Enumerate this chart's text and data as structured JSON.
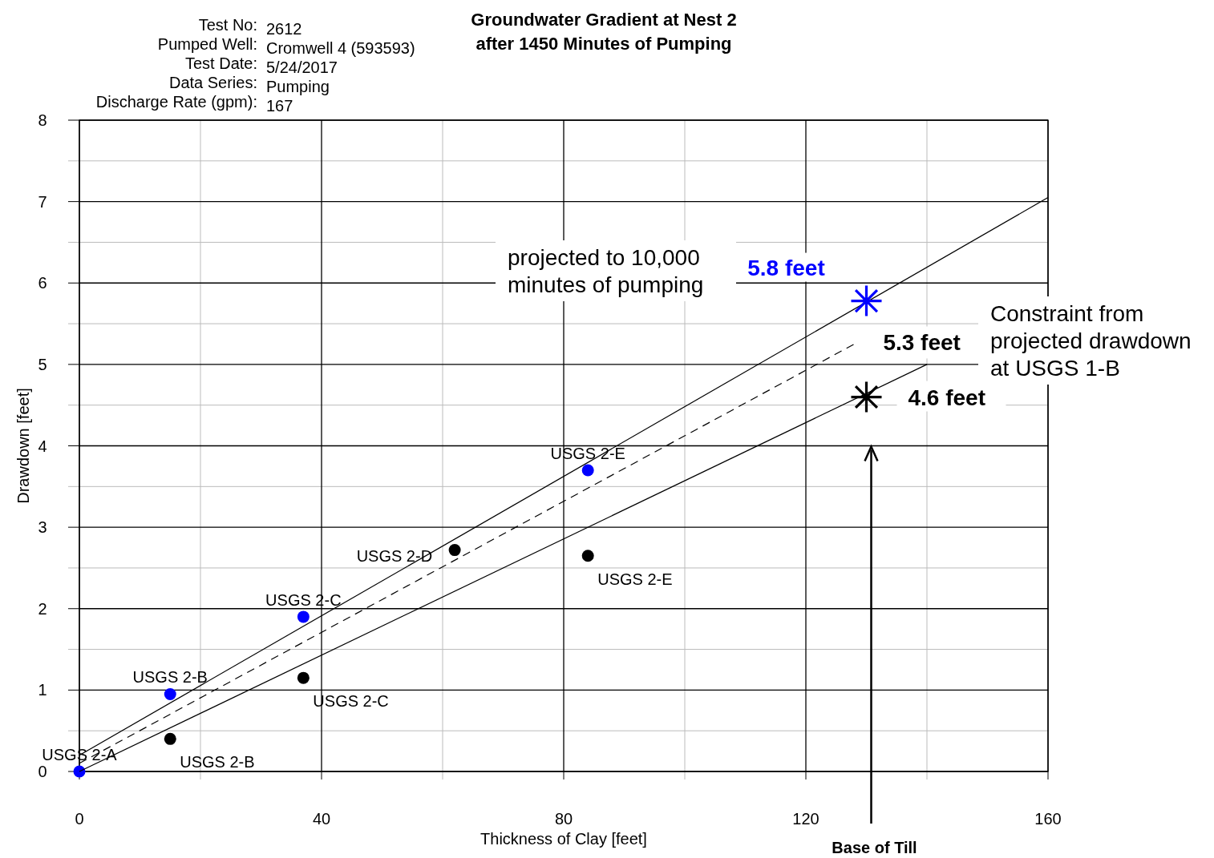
{
  "chart_data": {
    "type": "scatter",
    "title": "Groundwater Gradient at Nest 2\nafter 1450 Minutes of Pumping",
    "xlabel": "Thickness of Clay [feet]",
    "ylabel": "Drawdown [feet]",
    "xlim": [
      0,
      160
    ],
    "ylim": [
      0,
      8
    ],
    "xticks": [
      0,
      40,
      80,
      120,
      160
    ],
    "yticks": [
      0,
      1,
      2,
      3,
      4,
      5,
      6,
      7,
      8
    ],
    "grid": true,
    "marker": "circle",
    "series": [
      {
        "color": "#0000ff",
        "x": [
          0,
          15,
          37,
          84
        ],
        "values": [
          0,
          0.95,
          1.9,
          3.7
        ]
      },
      {
        "color": "#000000",
        "x": [
          15,
          37,
          62,
          84
        ],
        "values": [
          0.4,
          1.15,
          2.72,
          2.65
        ]
      },
      {
        "type": "line",
        "color": "#000000",
        "line_style": "solid",
        "marker": "none",
        "x": [
          0,
          160
        ],
        "values": [
          0.2,
          7.05
        ]
      },
      {
        "type": "line",
        "color": "#000000",
        "line_style": "dashed",
        "marker": "none",
        "x": [
          0,
          128
        ],
        "values": [
          0.1,
          5.25
        ]
      },
      {
        "type": "line",
        "color": "#000000",
        "line_style": "solid",
        "marker": "none",
        "x": [
          0,
          140
        ],
        "values": [
          0,
          5.0
        ]
      },
      {
        "color": "#0000ff",
        "marker": "star",
        "x": [
          130
        ],
        "values": [
          5.78
        ]
      },
      {
        "color": "#000000",
        "marker": "star",
        "x": [
          130
        ],
        "values": [
          4.6
        ]
      }
    ],
    "annotations": [
      "Test No: 2612",
      "Pumped Well: Cromwell 4 (593593)",
      "Test Date: 5/24/2017",
      "Data Series: Pumping",
      "Discharge Rate (gpm): 167",
      "projected to 10,000\nminutes of pumping",
      "Constraint from\nprojected drawdown\nat USGS 1-B",
      "5.3 feet",
      "Base of Till",
      {
        "text": "USGS 2-A",
        "x": 0,
        "y": 0
      },
      {
        "text": "USGS 2-B",
        "x": 15,
        "y": 0.95
      },
      {
        "text": "USGS 2-C",
        "x": 37,
        "y": 1.9
      },
      {
        "text": "USGS 2-E",
        "x": 84,
        "y": 3.7
      },
      {
        "text": "USGS 2-B",
        "x": 15,
        "y": 0.4
      },
      {
        "text": "USGS 2-C",
        "x": 37,
        "y": 1.15
      },
      {
        "text": "USGS 2-D",
        "x": 62,
        "y": 2.72
      },
      {
        "text": "USGS 2-E",
        "x": 84,
        "y": 2.65
      },
      {
        "text": "5.8 feet",
        "x": 130,
        "y": 5.8
      },
      {
        "text": "4.6 feet",
        "x": 130,
        "y": 4.6
      }
    ]
  }
}
